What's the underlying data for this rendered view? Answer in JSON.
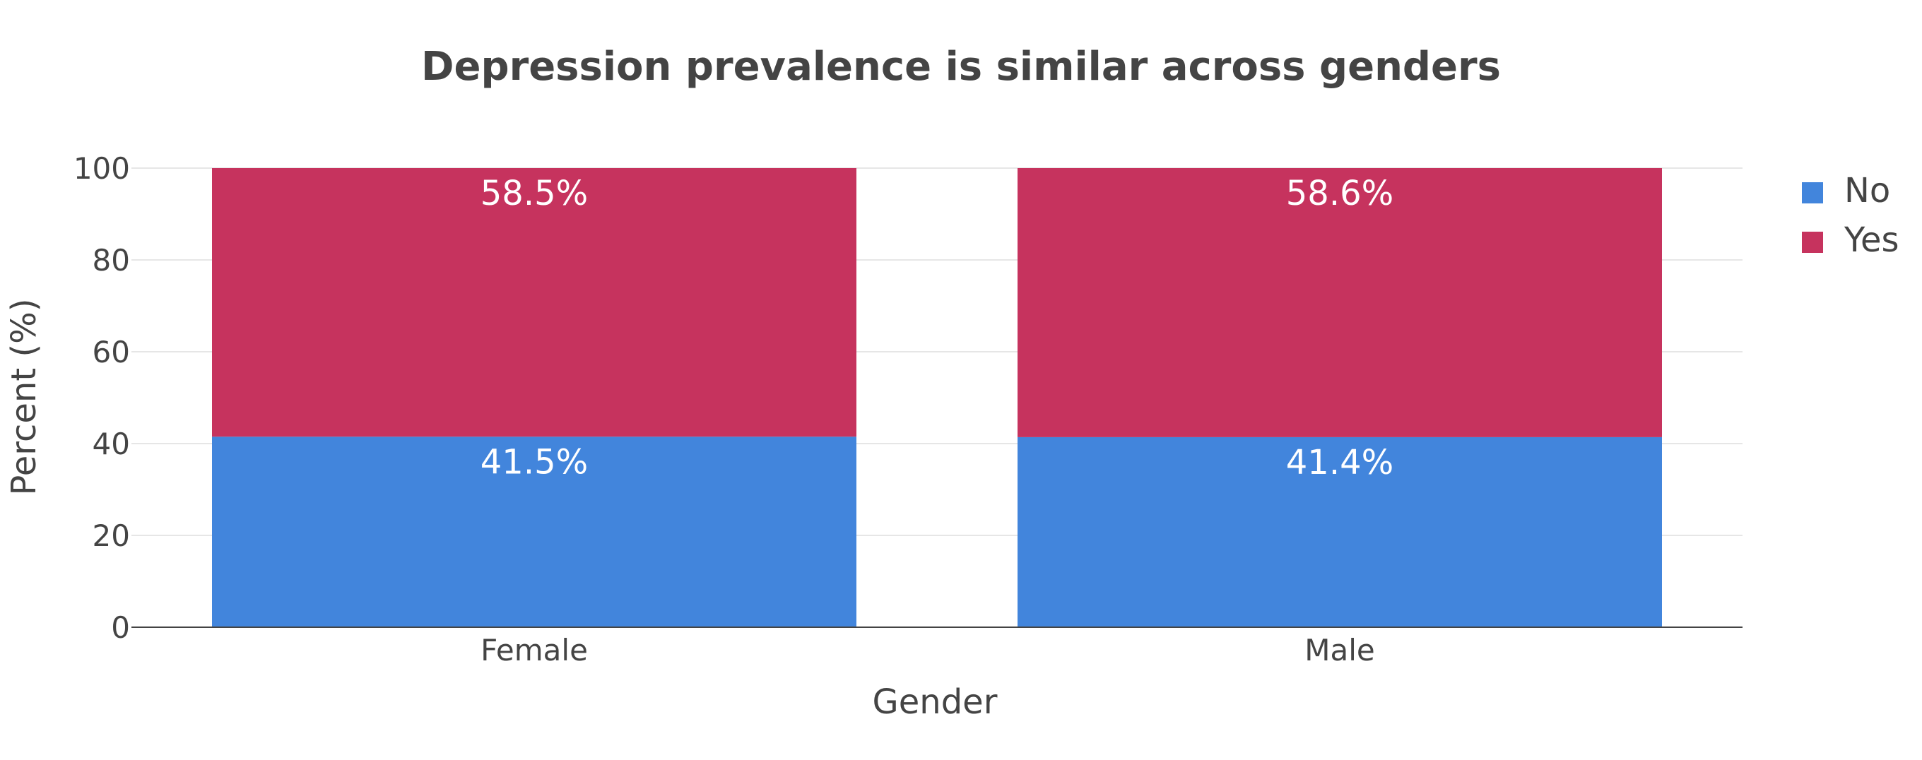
{
  "chart_data": {
    "type": "bar",
    "stacked": true,
    "title": "Depression prevalence is similar across genders",
    "xlabel": "Gender",
    "ylabel": "Percent (%)",
    "categories": [
      "Female",
      "Male"
    ],
    "ylim": [
      0,
      100
    ],
    "yticks": [
      0,
      20,
      40,
      60,
      80,
      100
    ],
    "grid": true,
    "legend_position": "top-right",
    "series": [
      {
        "name": "No",
        "color": "#4285DC",
        "values": [
          41.5,
          41.4
        ],
        "labels": [
          "41.5%",
          "41.4%"
        ]
      },
      {
        "name": "Yes",
        "color": "#C6335E",
        "values": [
          58.5,
          58.6
        ],
        "labels": [
          "58.5%",
          "58.6%"
        ]
      }
    ]
  }
}
